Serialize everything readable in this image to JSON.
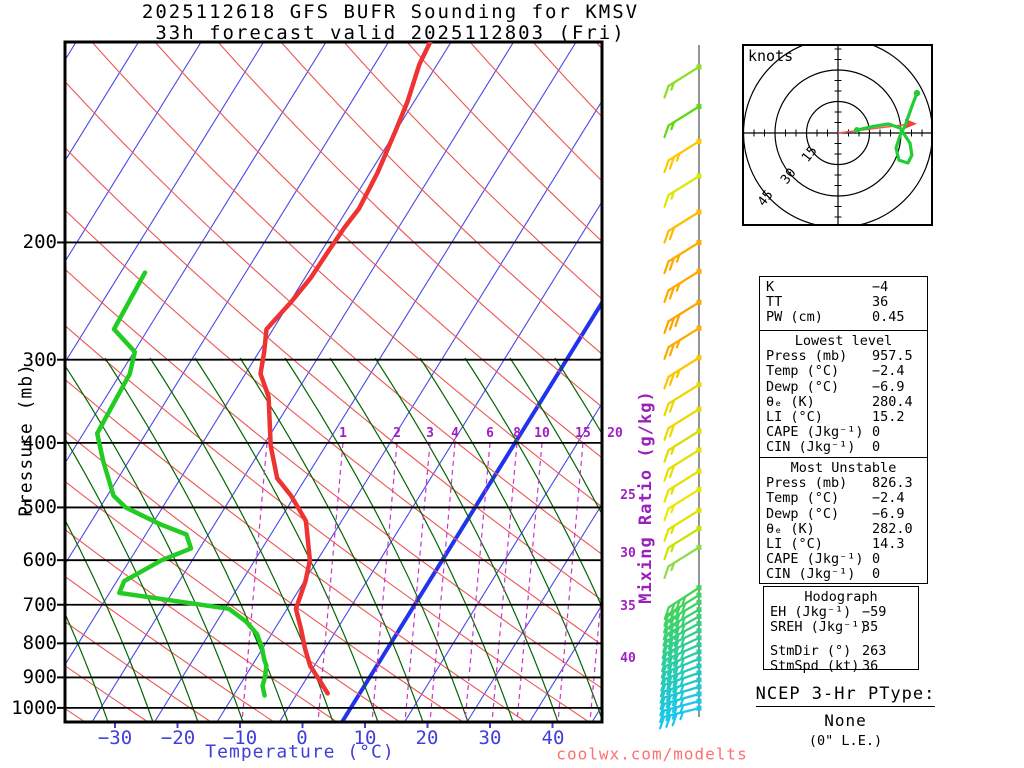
{
  "title": {
    "line1": "2025112618 GFS BUFR Sounding for KMSV",
    "line2": "33h forecast valid 2025112803 (Fri)"
  },
  "watermark": "coolwx.com/modelts",
  "axes": {
    "pressure_label": "Pressure (mb)",
    "pressure_ticks": [
      "200",
      "300",
      "400",
      "500",
      "600",
      "700",
      "800",
      "900",
      "1000"
    ],
    "temperature_label": "Temperature (°C)",
    "temperature_ticks": [
      "−30",
      "−20",
      "−10",
      "0",
      "10",
      "20",
      "30",
      "40"
    ],
    "mixing_label": "Mixing Ratio (g/kg)",
    "mixing_ticks_top": [
      "1",
      "2",
      "3",
      "4",
      "6",
      "8",
      "10",
      "15",
      "20"
    ],
    "mixing_ticks_right": [
      "25",
      "30",
      "35",
      "40"
    ]
  },
  "hodograph_inset": {
    "unit_label": "knots",
    "ring_labels": [
      "15",
      "30",
      "45"
    ]
  },
  "panels": [
    {
      "rows": [
        [
          "K",
          "−4"
        ],
        [
          "TT",
          "36"
        ],
        [
          "PW (cm)",
          "0.45"
        ]
      ]
    },
    {
      "header": "Lowest level",
      "rows": [
        [
          "Press (mb)",
          "957.5"
        ],
        [
          "Temp (°C)",
          "−2.4"
        ],
        [
          "Dewp (°C)",
          "−6.9"
        ],
        [
          "θₑ (K)",
          "280.4"
        ],
        [
          "LI (°C)",
          "15.2"
        ],
        [
          "CAPE (Jkg⁻¹)",
          "0"
        ],
        [
          "CIN (Jkg⁻¹)",
          "0"
        ]
      ]
    },
    {
      "header": "Most Unstable",
      "rows": [
        [
          "Press (mb)",
          "826.3"
        ],
        [
          "Temp (°C)",
          "−2.4"
        ],
        [
          "Dewp (°C)",
          "−6.9"
        ],
        [
          "θₑ (K)",
          "282.0"
        ],
        [
          "LI (°C)",
          "14.3"
        ],
        [
          "CAPE (Jkg⁻¹)",
          "0"
        ],
        [
          "CIN (Jkg⁻¹)",
          "0"
        ]
      ]
    },
    {
      "header": "Hodograph",
      "rows": [
        [
          "EH (Jkg⁻¹)",
          "−59"
        ],
        [
          "SREH (Jkg⁻¹)",
          "35"
        ],
        [
          "StmDir (°)",
          "263"
        ],
        [
          "StmSpd (kt)",
          "36"
        ]
      ]
    }
  ],
  "ptype": {
    "title": "NCEP 3-Hr PType:",
    "value": "None",
    "note": "(0\" L.E.)"
  },
  "chart_data": {
    "type": "skewt_log_p_sounding",
    "title": "2025112618 GFS BUFR Sounding for KMSV",
    "subtitle": "33h forecast valid 2025112803 (Fri)",
    "station": "KMSV",
    "model": "GFS BUFR",
    "forecast_hour": 33,
    "valid": "2025112803 (Fri)",
    "xlabel": "Temperature (°C)",
    "ylabel": "Pressure (mb)",
    "x_ticks_c": [
      -30,
      -20,
      -10,
      0,
      10,
      20,
      30,
      40
    ],
    "pressure_levels_mb": [
      200,
      300,
      400,
      500,
      600,
      700,
      800,
      900,
      1000
    ],
    "pressure_range_mb": [
      100,
      1050
    ],
    "y_scale": "log",
    "mixing_ratio_values_gkg": [
      1,
      2,
      3,
      4,
      6,
      8,
      10,
      15,
      20,
      25,
      30,
      35,
      40
    ],
    "surface": {
      "press_mb": 957.5,
      "temp_c": -2.4,
      "dewp_c": -6.9
    },
    "profile_values_are_estimates": true,
    "temperature_profile": [
      [
        100,
        -41.5
      ],
      [
        108,
        -41.2
      ],
      [
        123,
        -39.7
      ],
      [
        135,
        -39.0
      ],
      [
        157,
        -38.0
      ],
      [
        178,
        -37.7
      ],
      [
        190,
        -38.3
      ],
      [
        205,
        -38.7
      ],
      [
        226,
        -39.1
      ],
      [
        245,
        -40.0
      ],
      [
        263,
        -41.1
      ],
      [
        270,
        -41.5
      ],
      [
        292,
        -39.8
      ],
      [
        315,
        -38.4
      ],
      [
        341,
        -35.0
      ],
      [
        404,
        -30.2
      ],
      [
        452,
        -26.2
      ],
      [
        480,
        -22.4
      ],
      [
        524,
        -17.7
      ],
      [
        600,
        -13.5
      ],
      [
        645,
        -12.3
      ],
      [
        710,
        -11.3
      ],
      [
        760,
        -8.7
      ],
      [
        817,
        -6.1
      ],
      [
        865,
        -3.8
      ],
      [
        912,
        -0.8
      ],
      [
        951,
        1.5
      ]
    ],
    "dewpoint_profile": [
      [
        222,
        -66.1
      ],
      [
        270,
        -65.9
      ],
      [
        292,
        -60.5
      ],
      [
        315,
        -59.3
      ],
      [
        387,
        -59.1
      ],
      [
        425,
        -55.7
      ],
      [
        480,
        -50.8
      ],
      [
        500,
        -47.8
      ],
      [
        530,
        -40.7
      ],
      [
        549,
        -35.6
      ],
      [
        576,
        -33.6
      ],
      [
        600,
        -37.2
      ],
      [
        645,
        -41.3
      ],
      [
        672,
        -41.0
      ],
      [
        710,
        -22.0
      ],
      [
        742,
        -18.1
      ],
      [
        775,
        -15.2
      ],
      [
        814,
        -13.1
      ],
      [
        845,
        -11.8
      ],
      [
        865,
        -10.8
      ],
      [
        900,
        -10.0
      ],
      [
        927,
        -9.6
      ],
      [
        958,
        -8.4
      ]
    ],
    "wind_barbs": [
      [
        109,
        15,
        "#8ce022",
        32
      ],
      [
        125,
        15,
        "#62d813",
        32
      ],
      [
        141,
        25,
        "#ffc800",
        32
      ],
      [
        159,
        15,
        "#dce800",
        32
      ],
      [
        180,
        20,
        "#ffbb00",
        32
      ],
      [
        200,
        25,
        "#ffaa00",
        32
      ],
      [
        221,
        25,
        "#ffaa00",
        32
      ],
      [
        246,
        30,
        "#ffa300",
        32
      ],
      [
        269,
        25,
        "#ffab00",
        32
      ],
      [
        298,
        25,
        "#ffc400",
        32
      ],
      [
        327,
        20,
        "#ecd800",
        32
      ],
      [
        356,
        20,
        "#ecd800",
        32
      ],
      [
        384,
        15,
        "#dedc00",
        32
      ],
      [
        410,
        20,
        "#e4e000",
        32
      ],
      [
        441,
        15,
        "#e6e300",
        32
      ],
      [
        470,
        15,
        "#eae800",
        32
      ],
      [
        505,
        15,
        "#e2e200",
        32
      ],
      [
        538,
        15,
        "#c8e400",
        32
      ],
      [
        574,
        15,
        "#8cdc44",
        32
      ],
      [
        660,
        35,
        "#44d455",
        33
      ],
      [
        677,
        35,
        "#41d35e",
        32
      ],
      [
        694,
        35,
        "#3ed267",
        31
      ],
      [
        712,
        35,
        "#3bd170",
        30
      ],
      [
        729,
        35,
        "#38d079",
        29
      ],
      [
        747,
        35,
        "#35cf82",
        28
      ],
      [
        766,
        35,
        "#33ce8b",
        26
      ],
      [
        785,
        35,
        "#30cd94",
        25
      ],
      [
        804,
        35,
        "#2dcd9d",
        24
      ],
      [
        824,
        35,
        "#2acca6",
        23
      ],
      [
        844,
        35,
        "#28cbaf",
        22
      ],
      [
        865,
        35,
        "#25cab8",
        21
      ],
      [
        886,
        35,
        "#22c9c1",
        19
      ],
      [
        908,
        35,
        "#20c9ca",
        18
      ],
      [
        930,
        35,
        "#1ec8d3",
        17
      ],
      [
        953,
        35,
        "#1cc8dc",
        16
      ],
      [
        977,
        35,
        "#1ac7e5",
        15
      ],
      [
        1001,
        35,
        "#18c6ee",
        14
      ]
    ],
    "hodograph": {
      "unit": "knots",
      "rings_kt": [
        15,
        30,
        45
      ],
      "storm_motion": {
        "dir_deg": 263,
        "spd_kt": 36
      },
      "trace_uv_kt": [
        [
          9,
          1.4
        ],
        [
          17,
          3.2
        ],
        [
          24,
          4.3
        ],
        [
          29.5,
          2.4
        ],
        [
          34.3,
          -4.8
        ],
        [
          35.2,
          -10.5
        ],
        [
          33.3,
          -14.3
        ],
        [
          29,
          -12.9
        ],
        [
          27.6,
          -7.1
        ],
        [
          30,
          0
        ],
        [
          31.9,
          3.3
        ],
        [
          33.5,
          8
        ],
        [
          35.5,
          13.5
        ],
        [
          37.6,
          19
        ]
      ]
    },
    "indices": {
      "K": -4,
      "TT": 36,
      "PW_cm": 0.45,
      "lowest_level": {
        "press_mb": 957.5,
        "temp_c": -2.4,
        "dewp_c": -6.9,
        "theta_e_k": 280.4,
        "li_c": 15.2,
        "cape_jkg": 0,
        "cin_jkg": 0
      },
      "most_unstable": {
        "press_mb": 826.3,
        "temp_c": -2.4,
        "dewp_c": -6.9,
        "theta_e_k": 282.0,
        "li_c": 14.3,
        "cape_jkg": 0,
        "cin_jkg": 0
      },
      "hodograph": {
        "eh_jkg": -59,
        "sreh_jkg": 35,
        "stm_dir_deg": 263,
        "stm_spd_kt": 36
      }
    },
    "colors": {
      "temp_trace": "#ee3333",
      "dewp_trace": "#22cc22",
      "isotherm": "#4848e8",
      "zero_isotherm": "#2233ee",
      "dry_adiabat": "#ee5555",
      "moist_adiabat": "#006600",
      "mixing_line": "#cc33cc",
      "pressure_line": "#000000",
      "barb_staff": "#7a7a7a",
      "hodo_trace": "#22cc33",
      "storm_arrow": "#ff5555"
    }
  }
}
